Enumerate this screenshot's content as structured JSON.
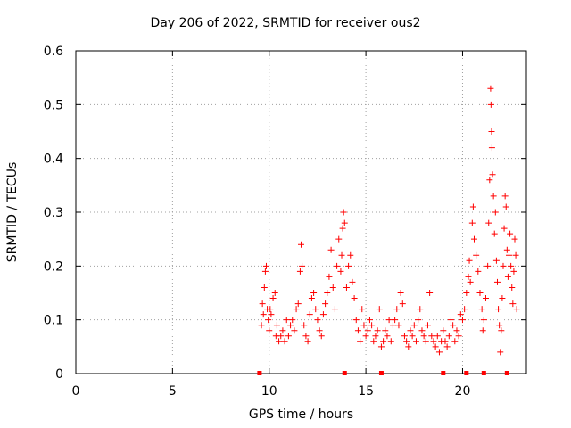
{
  "chart_data": {
    "type": "scatter",
    "title": "Day 206 of 2022, SRMTID for receiver ous2",
    "xlabel": "GPS time / hours",
    "ylabel": "SRMTID / TECUs",
    "xlim": [
      0,
      23.3
    ],
    "ylim": [
      0,
      0.6
    ],
    "xticks": [
      0,
      5,
      10,
      15,
      20
    ],
    "xtick_labels": [
      "0",
      "5",
      "10",
      "15",
      "20"
    ],
    "yticks": [
      0,
      0.1,
      0.2,
      0.3,
      0.4,
      0.5,
      0.6
    ],
    "ytick_labels": [
      "0",
      "0.1",
      "0.2",
      "0.3",
      "0.4",
      "0.5",
      "0.6"
    ],
    "grid": true,
    "marker": "+",
    "color": "#ff0000",
    "zero_markers_x": [
      9.5,
      13.9,
      15.8,
      19.0,
      20.2,
      21.1,
      22.3
    ],
    "series": [
      {
        "name": "SRMTID",
        "points": [
          [
            9.6,
            0.09
          ],
          [
            9.65,
            0.13
          ],
          [
            9.7,
            0.11
          ],
          [
            9.75,
            0.16
          ],
          [
            9.8,
            0.19
          ],
          [
            9.85,
            0.2
          ],
          [
            9.9,
            0.12
          ],
          [
            9.95,
            0.1
          ],
          [
            10.0,
            0.08
          ],
          [
            10.05,
            0.12
          ],
          [
            10.1,
            0.11
          ],
          [
            10.2,
            0.14
          ],
          [
            10.3,
            0.15
          ],
          [
            10.35,
            0.07
          ],
          [
            10.4,
            0.09
          ],
          [
            10.5,
            0.06
          ],
          [
            10.6,
            0.07
          ],
          [
            10.7,
            0.08
          ],
          [
            10.8,
            0.06
          ],
          [
            10.9,
            0.1
          ],
          [
            11.0,
            0.07
          ],
          [
            11.1,
            0.09
          ],
          [
            11.2,
            0.1
          ],
          [
            11.3,
            0.08
          ],
          [
            11.4,
            0.12
          ],
          [
            11.5,
            0.13
          ],
          [
            11.6,
            0.19
          ],
          [
            11.65,
            0.24
          ],
          [
            11.7,
            0.2
          ],
          [
            11.8,
            0.09
          ],
          [
            11.9,
            0.07
          ],
          [
            12.0,
            0.06
          ],
          [
            12.1,
            0.11
          ],
          [
            12.2,
            0.14
          ],
          [
            12.3,
            0.15
          ],
          [
            12.4,
            0.12
          ],
          [
            12.5,
            0.1
          ],
          [
            12.6,
            0.08
          ],
          [
            12.7,
            0.07
          ],
          [
            12.8,
            0.11
          ],
          [
            12.9,
            0.13
          ],
          [
            13.0,
            0.15
          ],
          [
            13.1,
            0.18
          ],
          [
            13.2,
            0.23
          ],
          [
            13.3,
            0.16
          ],
          [
            13.4,
            0.12
          ],
          [
            13.5,
            0.2
          ],
          [
            13.6,
            0.25
          ],
          [
            13.7,
            0.19
          ],
          [
            13.75,
            0.22
          ],
          [
            13.8,
            0.27
          ],
          [
            13.85,
            0.3
          ],
          [
            13.9,
            0.28
          ],
          [
            14.0,
            0.16
          ],
          [
            14.1,
            0.2
          ],
          [
            14.2,
            0.22
          ],
          [
            14.3,
            0.17
          ],
          [
            14.4,
            0.14
          ],
          [
            14.5,
            0.1
          ],
          [
            14.6,
            0.08
          ],
          [
            14.7,
            0.06
          ],
          [
            14.8,
            0.12
          ],
          [
            14.9,
            0.09
          ],
          [
            15.0,
            0.07
          ],
          [
            15.1,
            0.08
          ],
          [
            15.2,
            0.1
          ],
          [
            15.3,
            0.09
          ],
          [
            15.4,
            0.06
          ],
          [
            15.5,
            0.07
          ],
          [
            15.6,
            0.08
          ],
          [
            15.7,
            0.12
          ],
          [
            15.8,
            0.05
          ],
          [
            15.9,
            0.06
          ],
          [
            16.0,
            0.08
          ],
          [
            16.1,
            0.07
          ],
          [
            16.2,
            0.1
          ],
          [
            16.3,
            0.06
          ],
          [
            16.4,
            0.09
          ],
          [
            16.5,
            0.1
          ],
          [
            16.6,
            0.12
          ],
          [
            16.7,
            0.09
          ],
          [
            16.8,
            0.15
          ],
          [
            16.9,
            0.13
          ],
          [
            17.0,
            0.07
          ],
          [
            17.1,
            0.06
          ],
          [
            17.2,
            0.05
          ],
          [
            17.3,
            0.08
          ],
          [
            17.4,
            0.07
          ],
          [
            17.5,
            0.09
          ],
          [
            17.6,
            0.06
          ],
          [
            17.7,
            0.1
          ],
          [
            17.8,
            0.12
          ],
          [
            17.9,
            0.08
          ],
          [
            18.0,
            0.07
          ],
          [
            18.1,
            0.06
          ],
          [
            18.2,
            0.09
          ],
          [
            18.3,
            0.15
          ],
          [
            18.4,
            0.07
          ],
          [
            18.5,
            0.06
          ],
          [
            18.6,
            0.05
          ],
          [
            18.7,
            0.07
          ],
          [
            18.8,
            0.04
          ],
          [
            18.9,
            0.06
          ],
          [
            19.0,
            0.08
          ],
          [
            19.1,
            0.06
          ],
          [
            19.2,
            0.05
          ],
          [
            19.3,
            0.07
          ],
          [
            19.4,
            0.1
          ],
          [
            19.5,
            0.09
          ],
          [
            19.6,
            0.06
          ],
          [
            19.7,
            0.08
          ],
          [
            19.8,
            0.07
          ],
          [
            19.9,
            0.11
          ],
          [
            20.0,
            0.1
          ],
          [
            20.1,
            0.12
          ],
          [
            20.2,
            0.15
          ],
          [
            20.3,
            0.18
          ],
          [
            20.35,
            0.21
          ],
          [
            20.4,
            0.17
          ],
          [
            20.5,
            0.28
          ],
          [
            20.55,
            0.31
          ],
          [
            20.6,
            0.25
          ],
          [
            20.7,
            0.22
          ],
          [
            20.8,
            0.19
          ],
          [
            20.9,
            0.15
          ],
          [
            21.0,
            0.12
          ],
          [
            21.05,
            0.08
          ],
          [
            21.1,
            0.1
          ],
          [
            21.2,
            0.14
          ],
          [
            21.3,
            0.2
          ],
          [
            21.35,
            0.28
          ],
          [
            21.4,
            0.36
          ],
          [
            21.45,
            0.53
          ],
          [
            21.47,
            0.5
          ],
          [
            21.5,
            0.45
          ],
          [
            21.52,
            0.42
          ],
          [
            21.55,
            0.37
          ],
          [
            21.6,
            0.33
          ],
          [
            21.65,
            0.26
          ],
          [
            21.7,
            0.3
          ],
          [
            21.75,
            0.21
          ],
          [
            21.8,
            0.17
          ],
          [
            21.85,
            0.12
          ],
          [
            21.9,
            0.09
          ],
          [
            21.95,
            0.04
          ],
          [
            22.0,
            0.08
          ],
          [
            22.05,
            0.14
          ],
          [
            22.1,
            0.2
          ],
          [
            22.15,
            0.27
          ],
          [
            22.2,
            0.33
          ],
          [
            22.25,
            0.31
          ],
          [
            22.3,
            0.23
          ],
          [
            22.35,
            0.18
          ],
          [
            22.4,
            0.22
          ],
          [
            22.45,
            0.26
          ],
          [
            22.5,
            0.2
          ],
          [
            22.55,
            0.16
          ],
          [
            22.6,
            0.13
          ],
          [
            22.65,
            0.19
          ],
          [
            22.7,
            0.25
          ],
          [
            22.75,
            0.22
          ],
          [
            22.8,
            0.12
          ]
        ]
      }
    ]
  }
}
